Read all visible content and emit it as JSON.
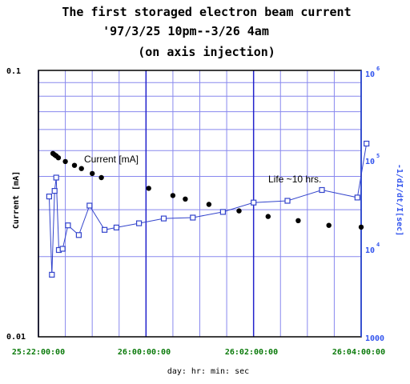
{
  "chart_data": {
    "type": "scatter",
    "title_lines": [
      "The first storaged electron beam current",
      "'97/3/25 10pm--3/26 4am",
      "(on axis injection)"
    ],
    "xlabel": "day: hr: min: sec",
    "ylabel_left": "Current [mA]",
    "ylabel_right": "-1/dI/dt/I[sec]",
    "x_ticks": [
      "25:22:00:00",
      "26:00:00:00",
      "26:02:00:00",
      "26:04:00:00"
    ],
    "x_tick_hours": [
      -2,
      0,
      2,
      4
    ],
    "xlim_hours": [
      -2,
      4
    ],
    "y_left": {
      "scale": "log",
      "ylim": [
        0.01,
        0.1
      ],
      "ticks": [
        "0.01",
        "0.1"
      ],
      "tick_values": [
        0.01,
        0.1
      ]
    },
    "y_right": {
      "scale": "log",
      "ylim": [
        1000,
        1000000
      ],
      "ticks": [
        "1000",
        "10^4",
        "10^5",
        "10^6"
      ],
      "tick_values": [
        1000,
        10000,
        100000,
        1000000
      ]
    },
    "grid": true,
    "annotations": [
      "Current [mA]",
      "Life ~10 hrs."
    ],
    "series": [
      {
        "axis": "left",
        "marker": "filled-circle",
        "connected": false,
        "hours": [
          -1.73,
          -1.7,
          -1.67,
          -1.63,
          -1.5,
          -1.33,
          -1.2,
          -1.0,
          -0.83,
          0.05,
          0.5,
          0.73,
          1.17,
          1.73,
          2.27,
          2.83,
          3.4,
          4.0
        ],
        "current_mA": [
          0.0488,
          0.0482,
          0.0478,
          0.047,
          0.0455,
          0.044,
          0.0428,
          0.041,
          0.0396,
          0.0361,
          0.0339,
          0.0329,
          0.0314,
          0.0297,
          0.0283,
          0.0273,
          0.0262,
          0.0258
        ]
      },
      {
        "axis": "right",
        "marker": "open-square",
        "connected": true,
        "hours": [
          -1.8,
          -1.75,
          -1.7,
          -1.67,
          -1.62,
          -1.55,
          -1.45,
          -1.25,
          -1.05,
          -0.77,
          -0.55,
          -0.13,
          0.33,
          0.87,
          1.43,
          2.0,
          2.63,
          3.27,
          3.93,
          4.1
        ],
        "life_sec": [
          38000,
          5000,
          44000,
          62000,
          9500,
          9800,
          18000,
          14000,
          30000,
          16000,
          17000,
          19000,
          21500,
          22000,
          25500,
          32500,
          34000,
          45000,
          37000,
          150000
        ]
      }
    ]
  }
}
